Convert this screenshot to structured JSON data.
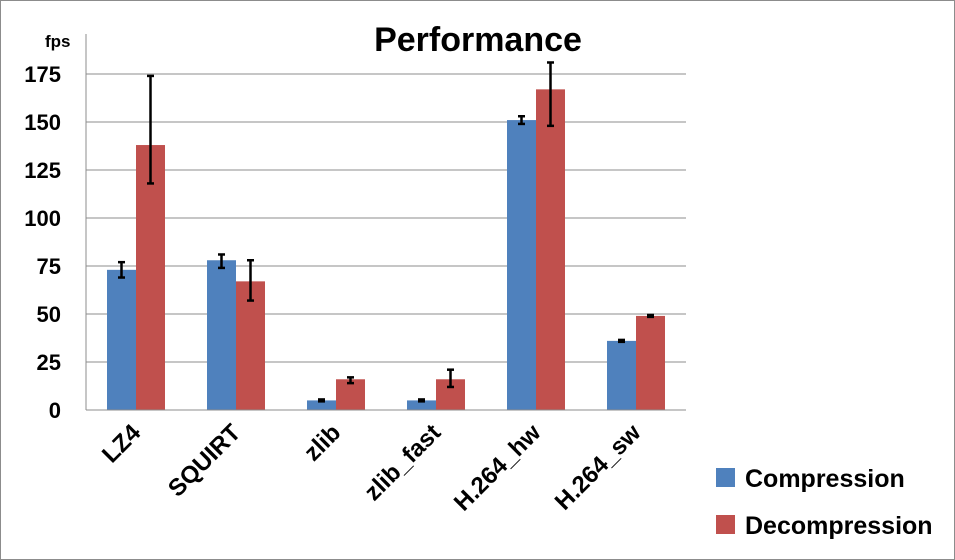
{
  "chart_data": {
    "type": "bar",
    "title": "Performance",
    "ylabel": "fps",
    "xlabel": "",
    "ylim": [
      0,
      175
    ],
    "yticks": [
      0,
      25,
      50,
      75,
      100,
      125,
      150,
      175
    ],
    "grid": true,
    "legend_position": "bottom-right",
    "categories": [
      "LZ4",
      "SQUIRT",
      "zlib",
      "zlib_fast",
      "H.264_hw",
      "H.264_sw"
    ],
    "series": [
      {
        "name": "Compression",
        "color": "#4f81bd",
        "values": [
          73,
          78,
          5,
          5,
          151,
          36
        ],
        "error_low": [
          69,
          74,
          4.5,
          4.5,
          149,
          35.5
        ],
        "error_high": [
          77,
          81,
          5.5,
          5.5,
          153,
          36.5
        ]
      },
      {
        "name": "Decompression",
        "color": "#c0504d",
        "values": [
          138,
          67,
          16,
          16,
          167,
          49
        ],
        "error_low": [
          118,
          57,
          14,
          12,
          148,
          48.5
        ],
        "error_high": [
          174,
          78,
          17,
          21,
          181,
          49.5
        ]
      }
    ]
  }
}
